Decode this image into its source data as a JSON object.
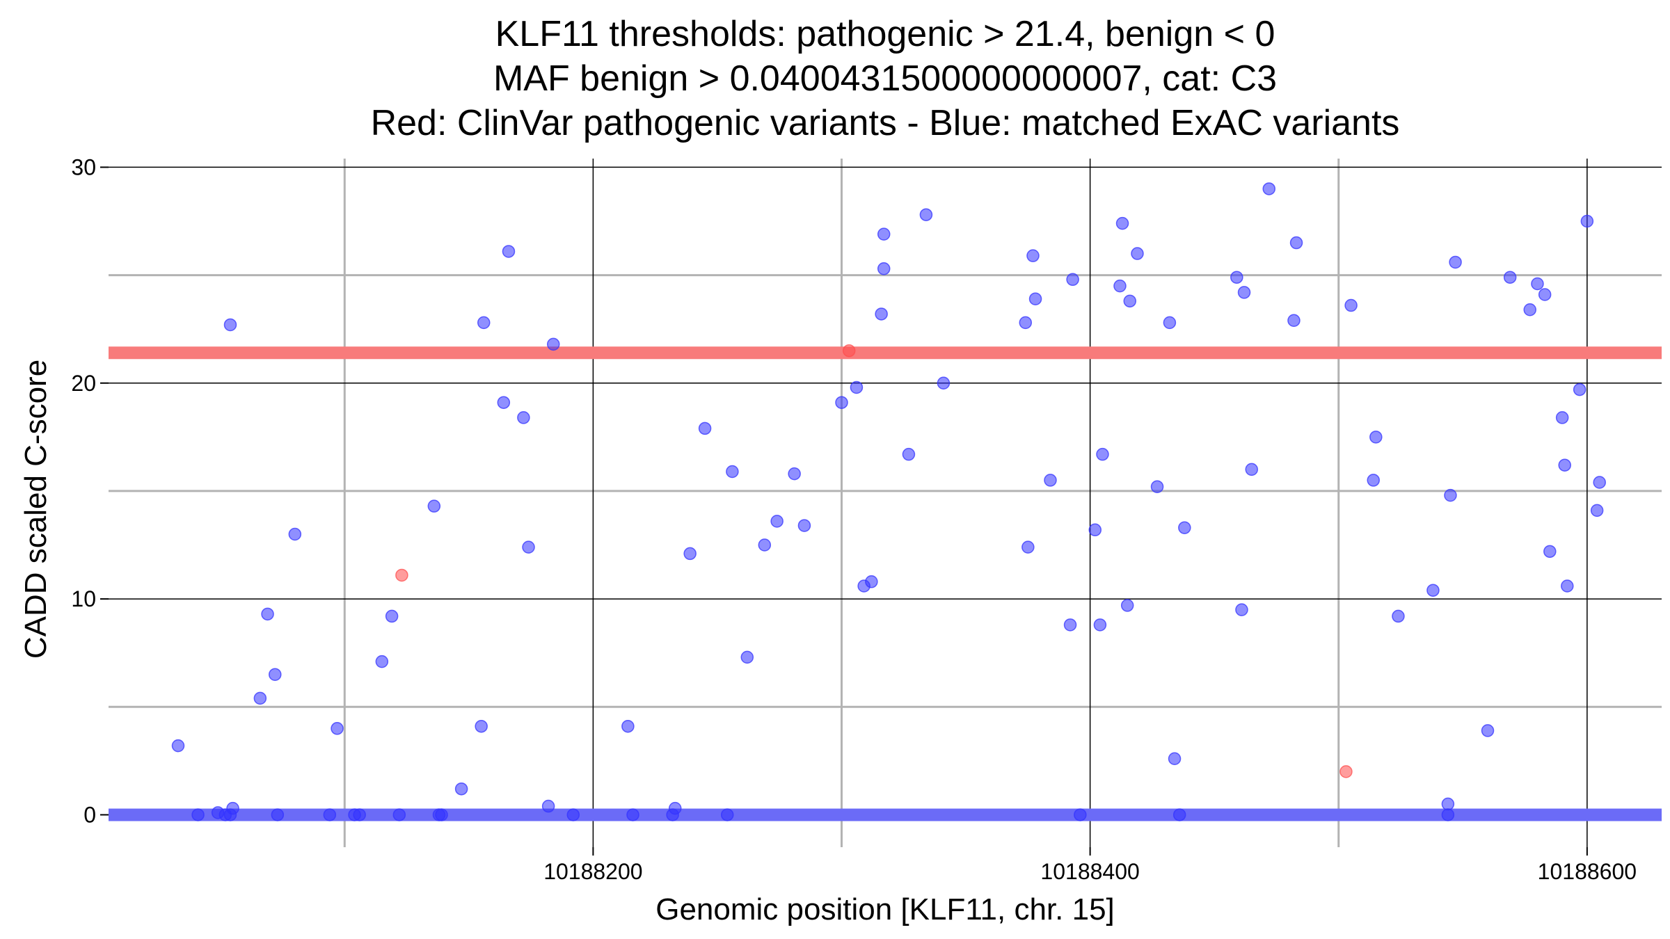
{
  "chart_data": {
    "type": "scatter",
    "title_lines": [
      "KLF11 thresholds: pathogenic > 21.4, benign < 0",
      "MAF benign > 0.0400431500000000007, cat: C3",
      "Red: ClinVar pathogenic variants - Blue: matched ExAC variants"
    ],
    "xlabel": "Genomic position [KLF11, chr. 15]",
    "ylabel": "CADD scaled C-score",
    "xlim": [
      10188005,
      10188630
    ],
    "ylim": [
      -1.5,
      30.4
    ],
    "x_ticks": [
      10188200,
      10188400,
      10188600
    ],
    "x_tick_labels": [
      "10188200",
      "10188400",
      "10188600"
    ],
    "x_minor_gridlines": [
      10188100,
      10188300,
      10188500
    ],
    "y_ticks": [
      0,
      10,
      20,
      30
    ],
    "y_tick_labels": [
      "0",
      "10",
      "20",
      "30"
    ],
    "y_minor_gridlines": [
      5,
      15,
      25
    ],
    "thresholds": {
      "pathogenic": {
        "value": 21.4,
        "color": "#f87b7b"
      },
      "benign": {
        "value": 0,
        "color": "#6b6bf7"
      }
    },
    "colors": {
      "pathogenic_point": "#ff4d4d",
      "benign_point": "#3333ff",
      "major_grid": "#000000",
      "minor_grid": "#b3b3b3"
    },
    "series": [
      {
        "name": "ClinVar pathogenic variants",
        "color": "#ff4d4d",
        "points": [
          [
            10188123,
            11.1
          ],
          [
            10188503,
            2.0
          ],
          [
            10188303,
            21.5
          ]
        ]
      },
      {
        "name": "matched ExAC variants",
        "color": "#3333ff",
        "points": [
          [
            10188033,
            3.2
          ],
          [
            10188041,
            0
          ],
          [
            10188049,
            0.1
          ],
          [
            10188052,
            0
          ],
          [
            10188054,
            0
          ],
          [
            10188055,
            0.3
          ],
          [
            10188054,
            22.7
          ],
          [
            10188066,
            5.4
          ],
          [
            10188069,
            9.3
          ],
          [
            10188072,
            6.5
          ],
          [
            10188073,
            0
          ],
          [
            10188080,
            13.0
          ],
          [
            10188094,
            0
          ],
          [
            10188097,
            4.0
          ],
          [
            10188104,
            0
          ],
          [
            10188106,
            0
          ],
          [
            10188115,
            7.1
          ],
          [
            10188119,
            9.2
          ],
          [
            10188122,
            0
          ],
          [
            10188136,
            14.3
          ],
          [
            10188138,
            0
          ],
          [
            10188139,
            0
          ],
          [
            10188147,
            1.2
          ],
          [
            10188155,
            4.1
          ],
          [
            10188156,
            22.8
          ],
          [
            10188164,
            19.1
          ],
          [
            10188166,
            26.1
          ],
          [
            10188172,
            18.4
          ],
          [
            10188174,
            12.4
          ],
          [
            10188182,
            0.4
          ],
          [
            10188184,
            21.8
          ],
          [
            10188192,
            0
          ],
          [
            10188214,
            4.1
          ],
          [
            10188216,
            0
          ],
          [
            10188232,
            0
          ],
          [
            10188233,
            0.3
          ],
          [
            10188239,
            12.1
          ],
          [
            10188245,
            17.9
          ],
          [
            10188254,
            0
          ],
          [
            10188256,
            15.9
          ],
          [
            10188262,
            7.3
          ],
          [
            10188269,
            12.5
          ],
          [
            10188274,
            13.6
          ],
          [
            10188281,
            15.8
          ],
          [
            10188285,
            13.4
          ],
          [
            10188300,
            19.1
          ],
          [
            10188306,
            19.8
          ],
          [
            10188309,
            10.6
          ],
          [
            10188312,
            10.8
          ],
          [
            10188316,
            23.2
          ],
          [
            10188317,
            25.3
          ],
          [
            10188317,
            26.9
          ],
          [
            10188327,
            16.7
          ],
          [
            10188334,
            27.8
          ],
          [
            10188341,
            20.0
          ],
          [
            10188374,
            22.8
          ],
          [
            10188375,
            12.4
          ],
          [
            10188377,
            25.9
          ],
          [
            10188378,
            23.9
          ],
          [
            10188384,
            15.5
          ],
          [
            10188392,
            8.8
          ],
          [
            10188393,
            24.8
          ],
          [
            10188396,
            0
          ],
          [
            10188402,
            13.2
          ],
          [
            10188404,
            8.8
          ],
          [
            10188405,
            16.7
          ],
          [
            10188412,
            24.5
          ],
          [
            10188413,
            27.4
          ],
          [
            10188415,
            9.7
          ],
          [
            10188416,
            23.8
          ],
          [
            10188419,
            26.0
          ],
          [
            10188427,
            15.2
          ],
          [
            10188432,
            22.8
          ],
          [
            10188434,
            2.6
          ],
          [
            10188436,
            0
          ],
          [
            10188438,
            13.3
          ],
          [
            10188459,
            24.9
          ],
          [
            10188461,
            9.5
          ],
          [
            10188462,
            24.2
          ],
          [
            10188465,
            16.0
          ],
          [
            10188472,
            29.0
          ],
          [
            10188482,
            22.9
          ],
          [
            10188483,
            26.5
          ],
          [
            10188505,
            23.6
          ],
          [
            10188514,
            15.5
          ],
          [
            10188515,
            17.5
          ],
          [
            10188524,
            9.2
          ],
          [
            10188538,
            10.4
          ],
          [
            10188544,
            0.5
          ],
          [
            10188544,
            0
          ],
          [
            10188545,
            14.8
          ],
          [
            10188547,
            25.6
          ],
          [
            10188560,
            3.9
          ],
          [
            10188569,
            24.9
          ],
          [
            10188577,
            23.4
          ],
          [
            10188580,
            24.6
          ],
          [
            10188583,
            24.1
          ],
          [
            10188585,
            12.2
          ],
          [
            10188590,
            18.4
          ],
          [
            10188591,
            16.2
          ],
          [
            10188592,
            10.6
          ],
          [
            10188597,
            19.7
          ],
          [
            10188600,
            27.5
          ],
          [
            10188604,
            14.1
          ],
          [
            10188605,
            15.4
          ]
        ]
      }
    ]
  }
}
